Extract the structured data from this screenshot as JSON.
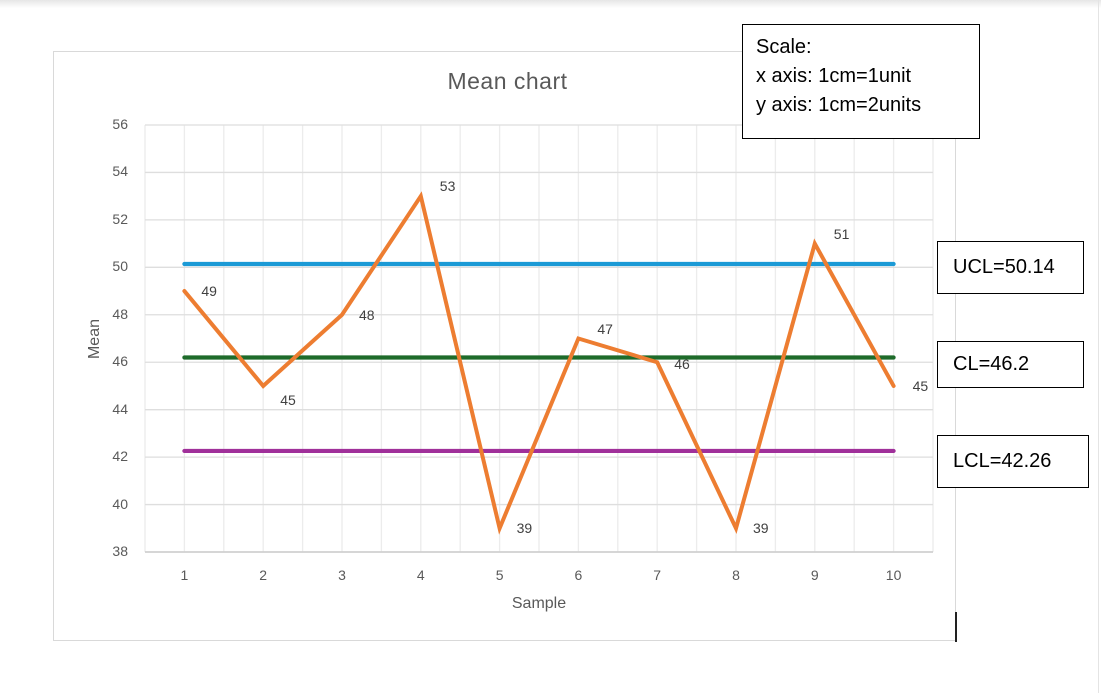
{
  "chart_data": {
    "type": "line",
    "title": "Mean chart",
    "xlabel": "Sample",
    "ylabel": "Mean",
    "categories": [
      1,
      2,
      3,
      4,
      5,
      6,
      7,
      8,
      9,
      10
    ],
    "ylim": [
      38,
      56
    ],
    "yticks": [
      38,
      40,
      42,
      44,
      46,
      48,
      50,
      52,
      54,
      56
    ],
    "grid": true,
    "legend": "none",
    "series": [
      {
        "name": "Mean",
        "color": "#ED7D31",
        "values": [
          49,
          45,
          48,
          53,
          39,
          47,
          46,
          39,
          51,
          45
        ],
        "data_labels": true
      },
      {
        "name": "UCL",
        "color": "#1B9AD6",
        "values": [
          50.14,
          50.14,
          50.14,
          50.14,
          50.14,
          50.14,
          50.14,
          50.14,
          50.14,
          50.14
        ]
      },
      {
        "name": "CL",
        "color": "#1E6B2A",
        "values": [
          46.2,
          46.2,
          46.2,
          46.2,
          46.2,
          46.2,
          46.2,
          46.2,
          46.2,
          46.2
        ]
      },
      {
        "name": "LCL",
        "color": "#A0309A",
        "values": [
          42.26,
          42.26,
          42.26,
          42.26,
          42.26,
          42.26,
          42.26,
          42.26,
          42.26,
          42.26
        ]
      }
    ],
    "annotations": [
      "Scale:",
      "x axis: 1cm=1unit",
      "y axis: 1cm=2units",
      "UCL=50.14",
      "CL=46.2",
      "LCL=42.26"
    ]
  },
  "annotations": {
    "scale": {
      "title": "Scale:",
      "x_line": "x axis: 1cm=1unit",
      "y_line": "y axis: 1cm=2units"
    },
    "ucl": "UCL=50.14",
    "cl": "CL=46.2",
    "lcl": "LCL=42.26"
  },
  "labels": {
    "y_ticks": [
      "56",
      "54",
      "52",
      "50",
      "48",
      "46",
      "44",
      "42",
      "40",
      "38"
    ],
    "x_ticks": [
      "1",
      "2",
      "3",
      "4",
      "5",
      "6",
      "7",
      "8",
      "9",
      "10"
    ],
    "points": [
      "49",
      "45",
      "48",
      "53",
      "39",
      "47",
      "46",
      "39",
      "51",
      "45"
    ]
  }
}
